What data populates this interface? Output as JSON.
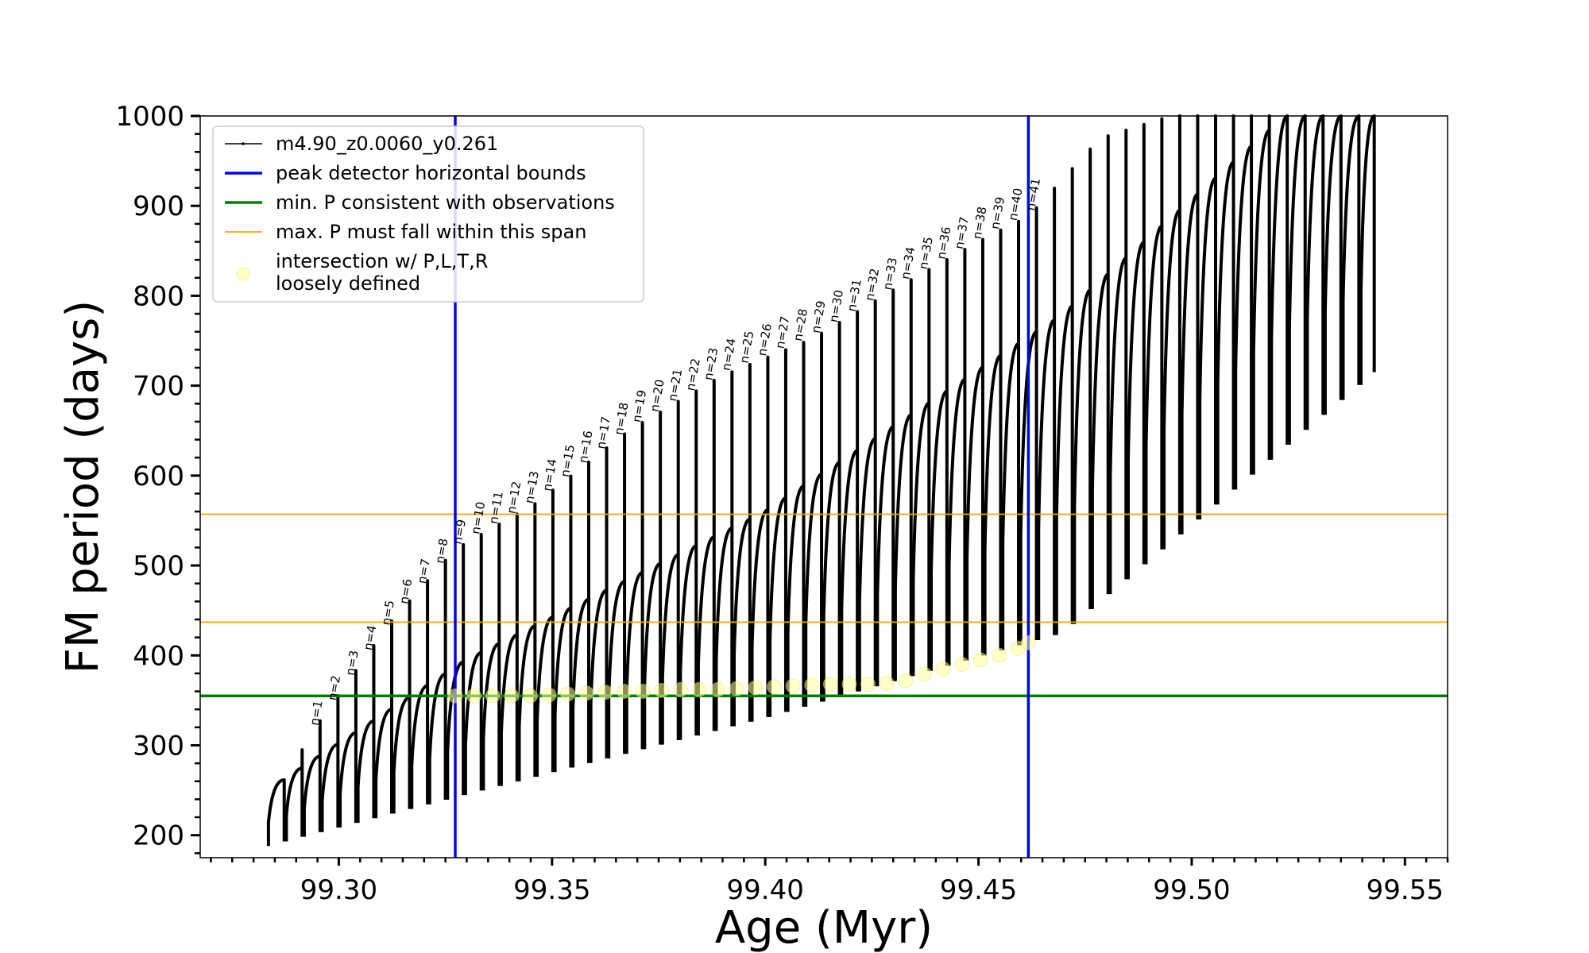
{
  "chart_data": {
    "type": "line",
    "xlabel": "Age (Myr)",
    "ylabel": "FM period (days)",
    "xlim": [
      99.2675,
      99.56
    ],
    "ylim": [
      175,
      1000
    ],
    "x_ticks": [
      99.3,
      99.35,
      99.4,
      99.45,
      99.5,
      99.55
    ],
    "x_tick_labels": [
      "99.30",
      "99.35",
      "99.40",
      "99.45",
      "99.50",
      "99.55"
    ],
    "y_ticks": [
      200,
      300,
      400,
      500,
      600,
      700,
      800,
      900,
      1000
    ],
    "y_tick_labels": [
      "200",
      "300",
      "400",
      "500",
      "600",
      "700",
      "800",
      "900",
      "1000"
    ],
    "legend": {
      "placement": "top-left",
      "entries": [
        {
          "key": "track",
          "label": "m4.90_z0.0060_y0.261",
          "color": "#000000",
          "style": "line-with-dots"
        },
        {
          "key": "bounds",
          "label": "peak detector horizontal bounds",
          "color": "#0000ff",
          "style": "thick-line"
        },
        {
          "key": "minp",
          "label": "min. P consistent with observations",
          "color": "#008000",
          "style": "thick-line"
        },
        {
          "key": "maxp",
          "label": "max. P must fall within this span",
          "color": "#ffa500",
          "style": "thin-line"
        },
        {
          "key": "intersect",
          "label_lines": [
            "intersection w/ P,L,T,R",
            "loosely defined"
          ],
          "color": "#ffff99",
          "style": "marker"
        }
      ]
    },
    "vertical_lines": [
      {
        "name": "peak detector horizontal bounds",
        "x": 99.3273,
        "color": "#0000ff"
      },
      {
        "name": "peak detector horizontal bounds",
        "x": 99.4617,
        "color": "#0000ff"
      }
    ],
    "horizontal_lines": [
      {
        "name": "min. P consistent with observations",
        "y": 355,
        "color": "#008000"
      },
      {
        "name": "max. P must fall within this span",
        "y": 437,
        "color": "#ffa500"
      },
      {
        "name": "max. P must fall within this span",
        "y": 557,
        "color": "#ffa500"
      }
    ],
    "pulse_cycles": {
      "description": "Thermal pulse cycles of the track: each cycle rises as a concave curve from the minimum period to a cap, then a spike reaches the peak period.",
      "x_start": 99.2835,
      "x_end": 99.5433,
      "count": 62,
      "spacing": 0.0042,
      "first_cycle": {
        "x": 99.2835,
        "min_period": 188,
        "cap_period": 250,
        "peak_period": 230
      },
      "peak_period_by_n": [
        {
          "n": 1,
          "x": 99.2942,
          "period": 318
        },
        {
          "n": 5,
          "x": 99.312,
          "period": 436
        },
        {
          "n": 8,
          "x": 99.3273,
          "period": 518
        },
        {
          "n": 10,
          "x": 99.3465,
          "period": 570
        },
        {
          "n": 15,
          "x": 99.368,
          "period": 650
        },
        {
          "n": 20,
          "x": 99.3895,
          "period": 710
        },
        {
          "n": 25,
          "x": 99.411,
          "period": 752
        },
        {
          "n": 30,
          "x": 99.432,
          "period": 812
        },
        {
          "n": 35,
          "x": 99.453,
          "period": 868
        },
        {
          "n": 37,
          "x": 99.4617,
          "period": 888
        },
        {
          "n": 41,
          "x": 99.4785,
          "period": 975
        }
      ],
      "min_period_trend": [
        [
          99.2835,
          188
        ],
        [
          99.33,
          245
        ],
        [
          99.4,
          330
        ],
        [
          99.47,
          425
        ],
        [
          99.5433,
          715
        ]
      ],
      "cap_period_trend": [
        [
          99.2835,
          250
        ],
        [
          99.33,
          395
        ],
        [
          99.4,
          560
        ],
        [
          99.47,
          780
        ],
        [
          99.522,
          1000
        ]
      ]
    },
    "n_labels": [
      "n=1",
      "n=2",
      "n=3",
      "n=4",
      "n=5",
      "n=6",
      "n=7",
      "n=8",
      "n=9",
      "n=10",
      "n=11",
      "n=12",
      "n=13",
      "n=14",
      "n=15",
      "n=16",
      "n=17",
      "n=18",
      "n=19",
      "n=20",
      "n=21",
      "n=22",
      "n=23",
      "n=24",
      "n=25",
      "n=26",
      "n=27",
      "n=28",
      "n=29",
      "n=30",
      "n=31",
      "n=32",
      "n=33",
      "n=34",
      "n=35",
      "n=36",
      "n=37",
      "n=38",
      "n=39",
      "n=40",
      "n=41"
    ],
    "intersection_points": [
      [
        99.3273,
        355
      ],
      [
        99.3317,
        355
      ],
      [
        99.3361,
        355
      ],
      [
        99.3405,
        355
      ],
      [
        99.3449,
        355
      ],
      [
        99.3493,
        356
      ],
      [
        99.3537,
        357
      ],
      [
        99.3581,
        358
      ],
      [
        99.3625,
        359
      ],
      [
        99.3669,
        360
      ],
      [
        99.3713,
        360
      ],
      [
        99.3757,
        361
      ],
      [
        99.3801,
        362
      ],
      [
        99.3845,
        362
      ],
      [
        99.3889,
        362
      ],
      [
        99.3933,
        363
      ],
      [
        99.3977,
        364
      ],
      [
        99.4021,
        365
      ],
      [
        99.4065,
        366
      ],
      [
        99.4109,
        367
      ],
      [
        99.4153,
        368
      ],
      [
        99.4197,
        368
      ],
      [
        99.4241,
        368
      ],
      [
        99.4285,
        369
      ],
      [
        99.4329,
        372
      ],
      [
        99.4373,
        379
      ],
      [
        99.4417,
        385
      ],
      [
        99.4461,
        390
      ],
      [
        99.4505,
        395
      ],
      [
        99.4549,
        400
      ],
      [
        99.4593,
        408
      ],
      [
        99.4617,
        414
      ]
    ]
  }
}
